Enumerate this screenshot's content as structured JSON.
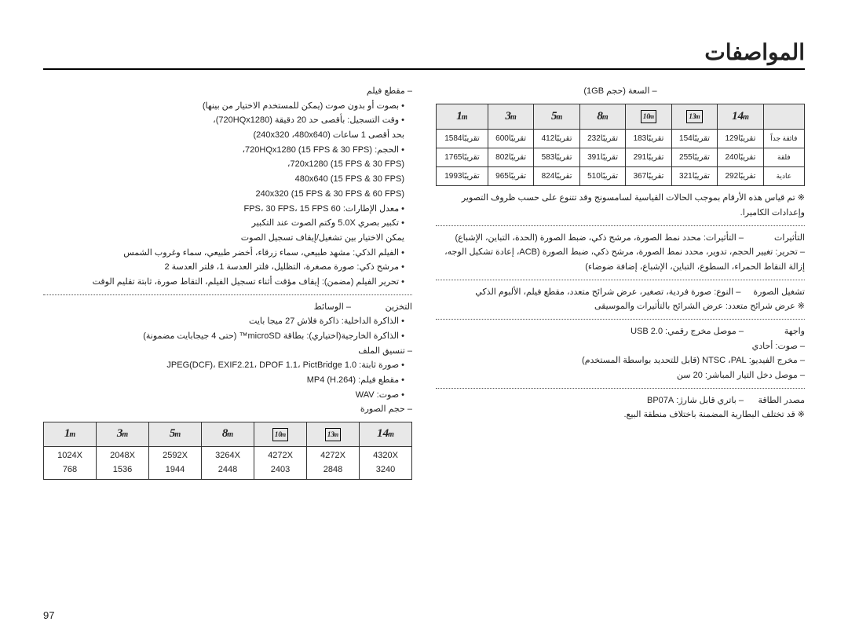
{
  "title": "المواصفات",
  "page_number": "97",
  "right_col": {
    "movie_label": "–  مقطع فيلم",
    "movie_bullets": [
      "• بصوت أو بدون صوت (يمكن للمستخدم الاختيار من بينها)",
      "• وقت التسجيل: بأقصى حد 20 دقيقة (720HQx1280)،",
      "بحد أقصى 1 ساعات (240x320 ،480x640)",
      "• الحجم: 720HQx1280 (15 FPS & 30 FPS)،",
      "720x1280 (15 FPS & 30 FPS)،",
      "480x640 (15 FPS & 30 FPS)",
      "240x320 (15 FPS & 30 FPS & 60 FPS)",
      "• معدل الإطارات: 60 FPS، 30 FPS، 15 FPS",
      "• تكبير بصري 5.0X وكتم الصوت عند التكبير",
      "يمكن الاختيار بين تشغيل/إيقاف تسجيل الصوت",
      "• الفيلم الذكي: مشهد طبيعي، سماء زرقاء، أخضر طبيعي، سماء وغروب الشمس",
      "• مرشح ذكي: صورة مصغرة، التظليل، فلتر العدسة 1، فلتر العدسة 2",
      "• تحرير الفيلم (مضمن): إيقاف مؤقت أثناء تسجيل الفيلم، التقاط صورة، ثابتة تقليم الوقت"
    ],
    "storage_label": "التخزين",
    "storage_value": "–  الوسائط",
    "storage_bullets": [
      "• الذاكرة الداخلية: ذاكرة فلاش 27 ميجا بايت",
      "• الذاكرة الخارجية(اختياري): بطاقة microSD™ (حتى 4 جيجابايت مضمونة)"
    ],
    "fileformat_label": "–  تنسيق الملف",
    "fileformat_bullets": [
      "• صورة ثابتة: JPEG(DCF)، EXIF2.21، DPOF 1.1، PictBridge 1.0",
      "• مقطع فيلم: MP4 (H.264)",
      "• صوت: WAV"
    ],
    "imagesize_label": "–  حجم الصورة",
    "size_table": {
      "headers": [
        {
          "boxed": false,
          "num": "1",
          "m": "m"
        },
        {
          "boxed": false,
          "num": "3",
          "m": "m"
        },
        {
          "boxed": false,
          "num": "5",
          "m": "m"
        },
        {
          "boxed": false,
          "num": "8",
          "m": "m"
        },
        {
          "boxed": true,
          "num": "10",
          "m": "m"
        },
        {
          "boxed": true,
          "num": "13",
          "m": "m"
        },
        {
          "boxed": false,
          "num": "14",
          "m": "m"
        }
      ],
      "row": [
        "1024X 768",
        "2048X 1536",
        "2592X 1944",
        "3264X 2448",
        "4272X 2403",
        "4272X 2848",
        "4320X 3240"
      ]
    }
  },
  "left_col": {
    "capacity_label": "–  السعة (حجم 1GB)",
    "capacity_table": {
      "headers": [
        {
          "boxed": false,
          "num": "1",
          "m": "m"
        },
        {
          "boxed": false,
          "num": "3",
          "m": "m"
        },
        {
          "boxed": false,
          "num": "5",
          "m": "m"
        },
        {
          "boxed": false,
          "num": "8",
          "m": "m"
        },
        {
          "boxed": true,
          "num": "10",
          "m": "m"
        },
        {
          "boxed": true,
          "num": "13",
          "m": "m"
        },
        {
          "boxed": false,
          "num": "14",
          "m": "m"
        },
        {
          "label": ""
        }
      ],
      "rows": [
        {
          "label": "فائقة جداً",
          "cells": [
            "تقريبًا1584",
            "تقريبًا600",
            "تقريبًا412",
            "تقريبًا232",
            "تقريبًا183",
            "تقريبًا154",
            "تقريبًا129"
          ]
        },
        {
          "label": "فلقة",
          "cells": [
            "تقريبًا1765",
            "تقريبًا802",
            "تقريبًا583",
            "تقريبًا391",
            "تقريبًا291",
            "تقريبًا255",
            "تقريبًا240"
          ]
        },
        {
          "label": "عادية",
          "cells": [
            "تقريبًا1993",
            "تقريبًا965",
            "تقريبًا824",
            "تقريبًا510",
            "تقريبًا367",
            "تقريبًا321",
            "تقريبًا292"
          ]
        }
      ]
    },
    "note1": "※ تم قياس هذه الأرقام بموجب الحالات القياسية لسامسونج وقد تتنوع على حسب ظروف التصوير وإعدادات الكاميرا.",
    "effects_label": "التأثيرات",
    "effects_value": "–  التأثيرات: محدد نمط الصورة، مرشح ذكي، ضبط الصورة (الحدة، التباين، الإشباع)",
    "effects_sub": "–  تحرير: تغيير الحجم، تدوير، محدد نمط الصورة، مرشح ذكي، ضبط الصورة (ACB، إعادة تشكيل الوجه، إزالة النقاط الحمراء، السطوع، التباين، الإشباع، إضافة ضوضاء)",
    "playback_label": "تشغيل الصورة",
    "playback_value": "–  النوع: صورة فردية، تصغير، عرض شرائح متعدد، مقطع فيلم، الألبوم الذكي",
    "playback_note": "※ عرض شرائح متعدد: عرض الشرائح بالتأثيرات والموسيقى",
    "interface_label": "واجهة",
    "interface_bullets": [
      "–  موصل مخرج رقمي: USB 2.0",
      "–  صوت: أحادي",
      "–  مخرج الفيديو: NTSC ،PAL (قابل للتحديد بواسطة المستخدم)",
      "–  موصل دخل التيار المباشر: 20 سن"
    ],
    "power_label": "مصدر الطاقة",
    "power_value": "–  باتري قابل شارژ: BP07A",
    "power_note": "※ قد تختلف البطارية المضمنة باختلاف منطقة البيع."
  }
}
